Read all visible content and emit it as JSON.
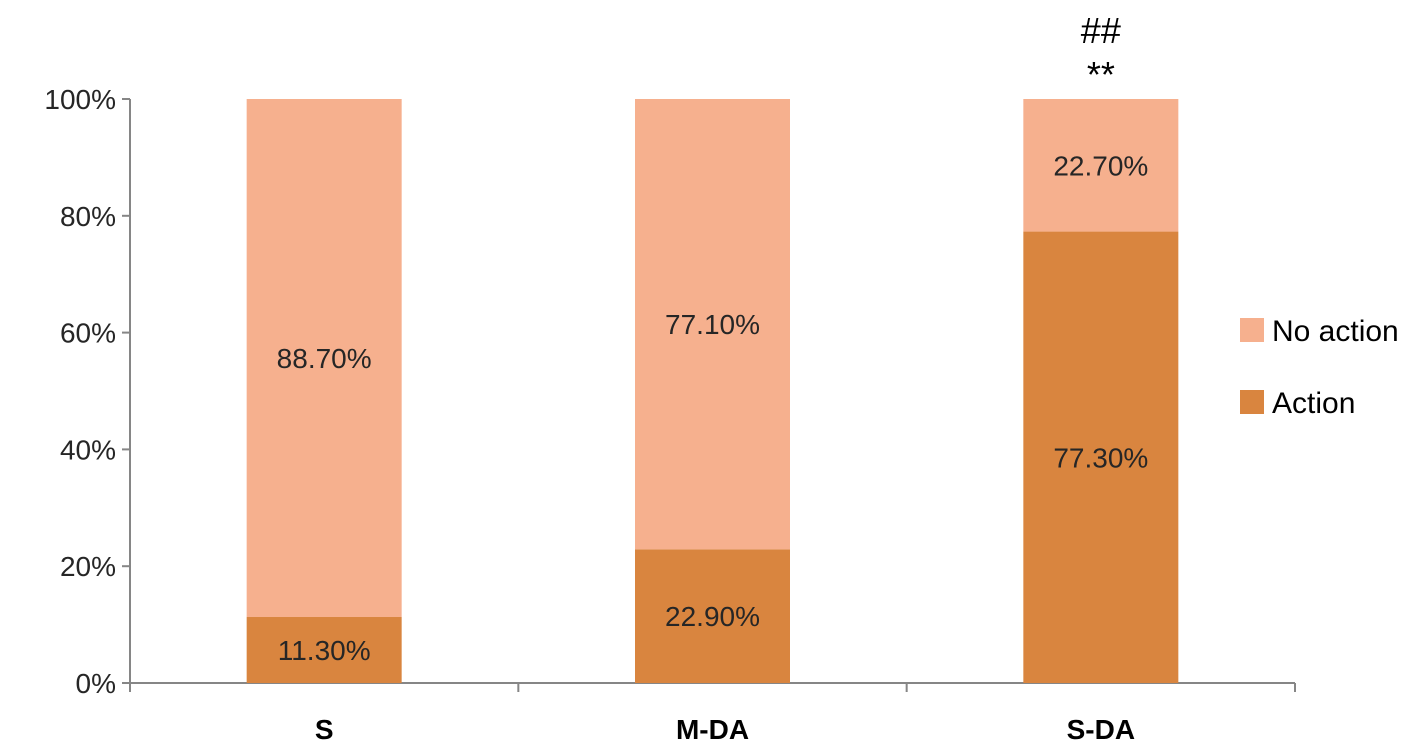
{
  "chart_data": {
    "type": "bar",
    "stacked": true,
    "categories": [
      "S",
      "M-DA",
      "S-DA"
    ],
    "series": [
      {
        "name": "Action",
        "color": "#d9853f",
        "values": [
          11.3,
          22.9,
          77.3
        ],
        "labels": [
          "11.30%",
          "22.90%",
          "77.30%"
        ]
      },
      {
        "name": "No action",
        "color": "#f6b08e",
        "values": [
          88.7,
          77.1,
          22.7
        ],
        "labels": [
          "88.70%",
          "77.10%",
          "22.70%"
        ]
      }
    ],
    "ylim": [
      0,
      100
    ],
    "yticks": [
      "0%",
      "20%",
      "40%",
      "60%",
      "80%",
      "100%"
    ],
    "annotations": [
      {
        "category": "S-DA",
        "lines": [
          "##",
          "**"
        ]
      }
    ],
    "legend": {
      "placement": "right",
      "order": [
        "No action",
        "Action"
      ]
    },
    "grid": false,
    "title": "",
    "xlabel": "",
    "ylabel": ""
  }
}
